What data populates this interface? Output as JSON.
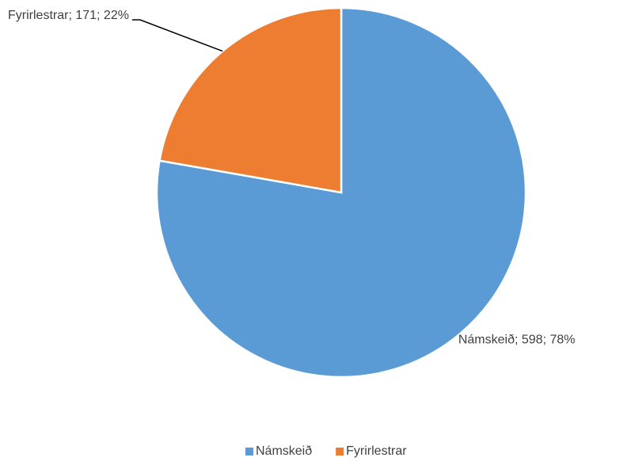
{
  "chart_data": {
    "type": "pie",
    "categories": [
      "Námskeið",
      "Fyrirlestrar"
    ],
    "values": [
      598,
      171
    ],
    "value_labels": [
      "Námskeið; 598; 78%",
      "Fyrirlestrar; 171; 22%"
    ],
    "colors": [
      "#5b9bd5",
      "#ed7d31"
    ],
    "legend": "bottom"
  }
}
